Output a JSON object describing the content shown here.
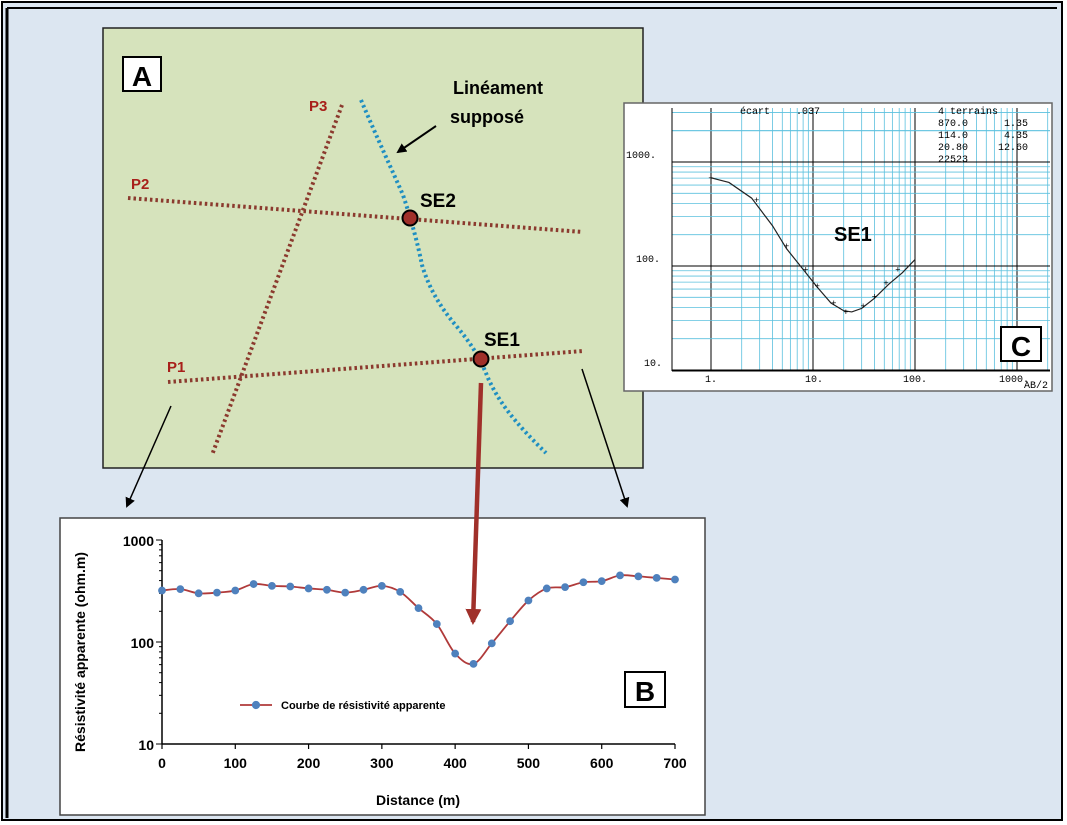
{
  "colors": {
    "background": "#dce6f1",
    "panel_a_fill": "#d6e3bc",
    "profile_line": "#8b3a2e",
    "lineament": "#1f8fc2",
    "station_fill": "#a0302a",
    "curve_line": "#b03a3a",
    "marker": "#4f81bd",
    "grid_line": "#5bc0de"
  },
  "panel_a": {
    "label": "A",
    "lineament_label_line1": "Linéament",
    "lineament_label_line2": "supposé",
    "profiles": [
      "P1",
      "P2",
      "P3"
    ],
    "stations": [
      "SE1",
      "SE2"
    ]
  },
  "panel_b": {
    "label": "B",
    "legend": "Courbe de résistivité apparente"
  },
  "panel_c": {
    "label": "C",
    "curve_label": "SE1",
    "ecart_label": "écart",
    "ecart_value": ".037",
    "model_title": "4 terrains",
    "model_rows": [
      [
        "870.0",
        "1.35"
      ],
      [
        "114.0",
        "4.35"
      ],
      [
        "20.80",
        "12.60"
      ],
      [
        "22523",
        ""
      ]
    ],
    "y_ticks": [
      "1000.",
      "100.",
      "10."
    ],
    "x_ticks": [
      "1.",
      "10.",
      "100.",
      "1000."
    ],
    "x_axis_label": "AB/2"
  },
  "chart_data": {
    "type": "line",
    "xlabel": "Distance (m)",
    "ylabel": "Résistivité apparente (ohm.m)",
    "yscale": "log",
    "xlim": [
      0,
      700
    ],
    "ylim": [
      10,
      1000
    ],
    "x_ticks": [
      "0",
      "100",
      "200",
      "300",
      "400",
      "500",
      "600",
      "700"
    ],
    "y_ticks": [
      "10",
      "100",
      "1000"
    ],
    "series": [
      {
        "name": "Courbe de résistivité apparente",
        "x": [
          0,
          25,
          50,
          75,
          100,
          125,
          150,
          175,
          200,
          225,
          250,
          275,
          300,
          325,
          350,
          375,
          400,
          425,
          450,
          475,
          500,
          525,
          550,
          575,
          600,
          625,
          650,
          675,
          700
        ],
        "y": [
          320,
          330,
          300,
          305,
          320,
          370,
          355,
          350,
          335,
          325,
          305,
          325,
          355,
          310,
          215,
          150,
          77,
          61,
          97,
          160,
          255,
          335,
          345,
          385,
          395,
          450,
          440,
          425,
          410
        ]
      }
    ]
  }
}
